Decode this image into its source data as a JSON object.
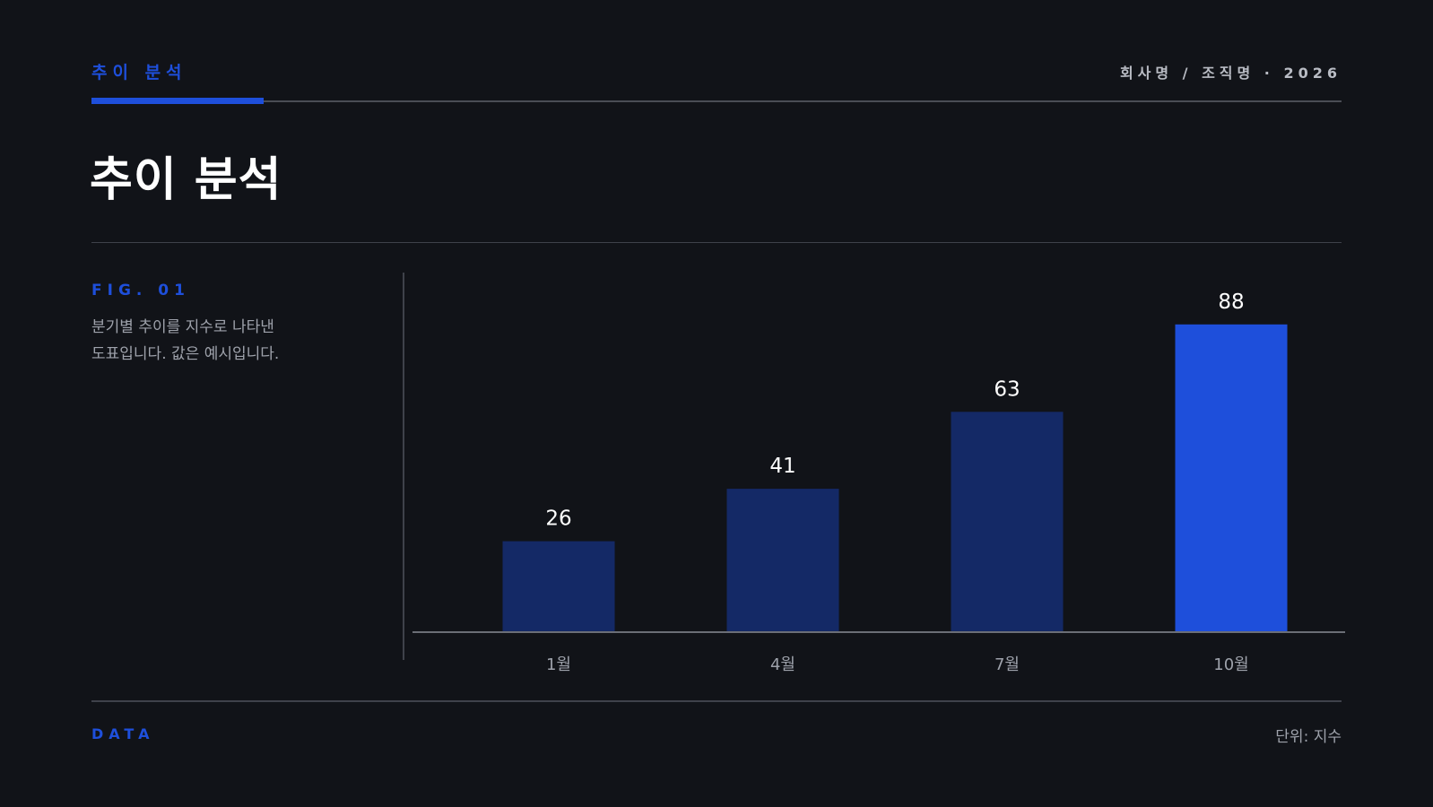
{
  "header": {
    "kicker": "추이 분석",
    "org": "회사명 / 조직명 · 2026"
  },
  "title": "추이 분석",
  "figure": {
    "label": "FIG. 01",
    "description": "분기별 추이를 지수로 나타낸\n도표입니다. 값은 예시입니다."
  },
  "footer": {
    "left": "DATA",
    "right": "단위: 지수"
  },
  "colors": {
    "background": "#111318",
    "accent": "#1e4fdb",
    "bar_muted": "#142966",
    "axis": "#6b6e76"
  },
  "chart_data": {
    "type": "bar",
    "categories": [
      "1월",
      "4월",
      "7월",
      "10월"
    ],
    "values": [
      26,
      41,
      63,
      88
    ],
    "highlight_index": 3,
    "ylim": [
      0,
      100
    ],
    "grid": false,
    "legend": "none",
    "xlabel": "",
    "ylabel": ""
  }
}
